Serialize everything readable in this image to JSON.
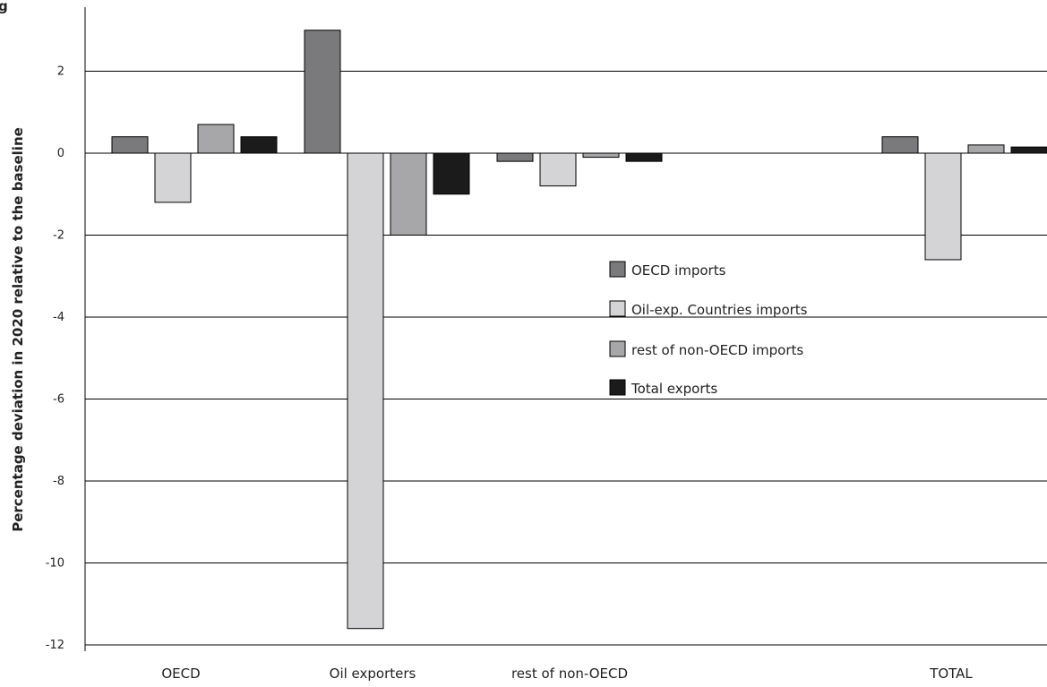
{
  "chart_data": {
    "type": "bar",
    "title_fragment": "g",
    "ylabel": "Percentage deviation in 2020 relative to the baseline",
    "xlabel": "",
    "ylim": [
      -12,
      3.5
    ],
    "yticks": [
      2,
      0,
      -2,
      -4,
      -6,
      -8,
      -10,
      -12
    ],
    "grid": true,
    "legend_position": "center-right",
    "categories": [
      "OECD",
      "Oil exporters",
      "rest of non-OECD",
      "",
      "TOTAL"
    ],
    "series": [
      {
        "name": "OECD imports",
        "color": "#7a7a7c",
        "values": [
          0.4,
          3.0,
          -0.2,
          0,
          0.4
        ]
      },
      {
        "name": "Oil-exp. Countries imports",
        "color": "#d4d4d6",
        "values": [
          -1.2,
          -11.6,
          -0.8,
          0,
          -2.6
        ]
      },
      {
        "name": "rest of non-OECD imports",
        "color": "#a7a7a9",
        "values": [
          0.7,
          -2.0,
          -0.1,
          0,
          0.2
        ]
      },
      {
        "name": "Total exports",
        "color": "#1b1b1b",
        "values": [
          0.4,
          -1.0,
          -0.2,
          0,
          0.15
        ]
      }
    ]
  }
}
